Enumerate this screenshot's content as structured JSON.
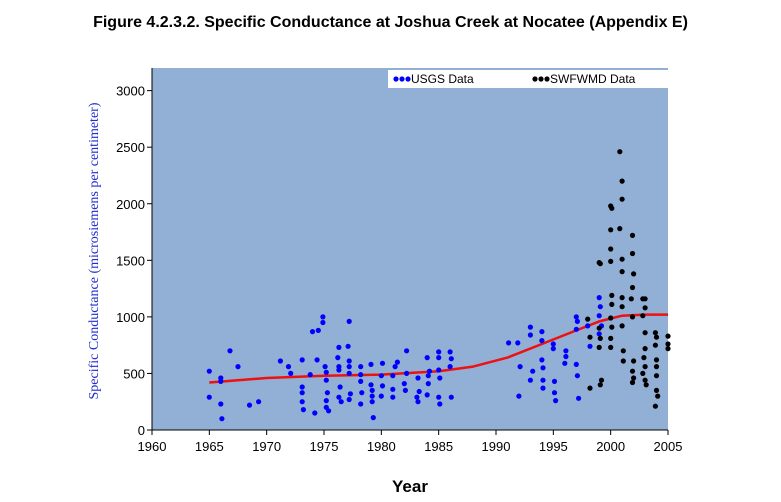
{
  "chart_data": {
    "type": "scatter",
    "title": "Figure 4.2.3.2.  Specific Conductance at Joshua Creek at Nocatee (Appendix E)",
    "xlabel": "Year",
    "ylabel": "Specific Conductance (microsiemens per centimeter)",
    "xlim": [
      1960,
      2005
    ],
    "ylim": [
      0,
      3200
    ],
    "xticks": [
      "1960",
      "1965",
      "1970",
      "1975",
      "1980",
      "1985",
      "1990",
      "1995",
      "2000",
      "2005"
    ],
    "yticks": [
      "0",
      "500",
      "1000",
      "1500",
      "2000",
      "2500",
      "3000"
    ],
    "plot_background": "#92afd6",
    "legend_position": "top-right",
    "grid": false,
    "series": [
      {
        "name": "USGS Data",
        "color": "#0000ff",
        "points": [
          [
            1965.0,
            520
          ],
          [
            1965.0,
            290
          ],
          [
            1966.0,
            460
          ],
          [
            1966.0,
            430
          ],
          [
            1966.0,
            230
          ],
          [
            1966.1,
            100
          ],
          [
            1966.8,
            700
          ],
          [
            1967.5,
            560
          ],
          [
            1968.5,
            220
          ],
          [
            1969.3,
            250
          ],
          [
            1971.2,
            610
          ],
          [
            1971.9,
            560
          ],
          [
            1972.1,
            500
          ],
          [
            1973.1,
            620
          ],
          [
            1973.1,
            380
          ],
          [
            1973.1,
            330
          ],
          [
            1973.1,
            250
          ],
          [
            1973.2,
            180
          ],
          [
            1973.8,
            490
          ],
          [
            1974.0,
            870
          ],
          [
            1974.2,
            150
          ],
          [
            1974.4,
            620
          ],
          [
            1974.5,
            880
          ],
          [
            1974.9,
            1000
          ],
          [
            1974.9,
            950
          ],
          [
            1975.1,
            560
          ],
          [
            1975.2,
            510
          ],
          [
            1975.2,
            440
          ],
          [
            1975.3,
            330
          ],
          [
            1975.2,
            260
          ],
          [
            1975.2,
            200
          ],
          [
            1975.4,
            170
          ],
          [
            1976.3,
            730
          ],
          [
            1976.2,
            640
          ],
          [
            1976.3,
            560
          ],
          [
            1976.3,
            530
          ],
          [
            1976.4,
            380
          ],
          [
            1976.3,
            290
          ],
          [
            1976.5,
            250
          ],
          [
            1977.2,
            960
          ],
          [
            1977.1,
            740
          ],
          [
            1977.2,
            610
          ],
          [
            1977.2,
            560
          ],
          [
            1977.2,
            500
          ],
          [
            1977.3,
            320
          ],
          [
            1977.2,
            270
          ],
          [
            1978.2,
            560
          ],
          [
            1978.2,
            490
          ],
          [
            1978.2,
            430
          ],
          [
            1978.3,
            330
          ],
          [
            1978.2,
            230
          ],
          [
            1979.1,
            580
          ],
          [
            1979.1,
            400
          ],
          [
            1979.2,
            350
          ],
          [
            1979.2,
            300
          ],
          [
            1979.2,
            250
          ],
          [
            1979.3,
            110
          ],
          [
            1980.0,
            480
          ],
          [
            1980.1,
            390
          ],
          [
            1980.0,
            300
          ],
          [
            1980.1,
            590
          ],
          [
            1981.0,
            480
          ],
          [
            1981.0,
            360
          ],
          [
            1981.0,
            290
          ],
          [
            1981.2,
            560
          ],
          [
            1981.4,
            600
          ],
          [
            1982.0,
            410
          ],
          [
            1982.1,
            350
          ],
          [
            1982.2,
            700
          ],
          [
            1982.2,
            500
          ],
          [
            1983.2,
            460
          ],
          [
            1983.3,
            340
          ],
          [
            1983.1,
            290
          ],
          [
            1983.2,
            250
          ],
          [
            1984.1,
            480
          ],
          [
            1984.1,
            410
          ],
          [
            1984.0,
            310
          ],
          [
            1984.2,
            520
          ],
          [
            1984.0,
            640
          ],
          [
            1985.0,
            690
          ],
          [
            1985.0,
            640
          ],
          [
            1985.0,
            530
          ],
          [
            1985.1,
            460
          ],
          [
            1985.0,
            290
          ],
          [
            1985.1,
            230
          ],
          [
            1986.0,
            690
          ],
          [
            1986.1,
            630
          ],
          [
            1986.0,
            560
          ],
          [
            1986.1,
            290
          ],
          [
            1991.1,
            770
          ],
          [
            1991.9,
            770
          ],
          [
            1992.1,
            560
          ],
          [
            1992.0,
            300
          ],
          [
            1993.0,
            840
          ],
          [
            1993.0,
            910
          ],
          [
            1993.2,
            520
          ],
          [
            1993.0,
            440
          ],
          [
            1994.0,
            870
          ],
          [
            1994.0,
            790
          ],
          [
            1994.0,
            620
          ],
          [
            1994.1,
            550
          ],
          [
            1994.1,
            440
          ],
          [
            1994.1,
            370
          ],
          [
            1995.0,
            760
          ],
          [
            1995.0,
            720
          ],
          [
            1995.1,
            430
          ],
          [
            1995.1,
            330
          ],
          [
            1995.2,
            260
          ],
          [
            1996.1,
            700
          ],
          [
            1996.1,
            650
          ],
          [
            1996.0,
            590
          ],
          [
            1997.0,
            1000
          ],
          [
            1997.1,
            960
          ],
          [
            1997.0,
            890
          ],
          [
            1997.0,
            580
          ],
          [
            1997.1,
            480
          ],
          [
            1997.2,
            280
          ],
          [
            1998.0,
            920
          ],
          [
            1998.2,
            740
          ],
          [
            1999.0,
            1170
          ],
          [
            1999.1,
            1090
          ],
          [
            1999.0,
            1010
          ],
          [
            1999.2,
            920
          ],
          [
            1999.0,
            850
          ]
        ]
      },
      {
        "name": "SWFWMD Data",
        "color": "#000000",
        "points": [
          [
            1998.0,
            980
          ],
          [
            1998.2,
            820
          ],
          [
            1998.2,
            370
          ],
          [
            1999.0,
            1480
          ],
          [
            1999.1,
            1470
          ],
          [
            1999.0,
            900
          ],
          [
            1999.1,
            810
          ],
          [
            1999.0,
            730
          ],
          [
            1999.2,
            440
          ],
          [
            1999.1,
            400
          ],
          [
            2000.0,
            1980
          ],
          [
            2000.1,
            1960
          ],
          [
            2000.0,
            1770
          ],
          [
            2000.0,
            1600
          ],
          [
            2000.0,
            1490
          ],
          [
            2000.1,
            1190
          ],
          [
            2000.1,
            1110
          ],
          [
            2000.0,
            990
          ],
          [
            2000.1,
            910
          ],
          [
            2000.0,
            810
          ],
          [
            2000.0,
            730
          ],
          [
            2000.8,
            2460
          ],
          [
            2001.0,
            2200
          ],
          [
            2001.0,
            2040
          ],
          [
            2000.8,
            1780
          ],
          [
            2001.0,
            1510
          ],
          [
            2001.0,
            1400
          ],
          [
            2001.0,
            1170
          ],
          [
            2001.0,
            1090
          ],
          [
            2001.0,
            920
          ],
          [
            2001.1,
            700
          ],
          [
            2001.1,
            610
          ],
          [
            2001.9,
            1720
          ],
          [
            2001.9,
            1560
          ],
          [
            2002.0,
            1380
          ],
          [
            2001.9,
            1260
          ],
          [
            2001.8,
            1160
          ],
          [
            2001.9,
            1000
          ],
          [
            2002.0,
            610
          ],
          [
            2001.9,
            520
          ],
          [
            2002.0,
            460
          ],
          [
            2001.9,
            420
          ],
          [
            2002.8,
            1160
          ],
          [
            2002.8,
            1010
          ],
          [
            2003.0,
            1160
          ],
          [
            2003.0,
            1080
          ],
          [
            2003.0,
            860
          ],
          [
            2003.0,
            720
          ],
          [
            2002.9,
            640
          ],
          [
            2003.0,
            560
          ],
          [
            2002.8,
            500
          ],
          [
            2003.0,
            440
          ],
          [
            2003.1,
            400
          ],
          [
            2003.9,
            860
          ],
          [
            2003.9,
            750
          ],
          [
            2004.0,
            820
          ],
          [
            2004.0,
            620
          ],
          [
            2004.0,
            560
          ],
          [
            2004.0,
            480
          ],
          [
            2004.0,
            350
          ],
          [
            2004.1,
            300
          ],
          [
            2003.9,
            210
          ],
          [
            2005.0,
            830
          ],
          [
            2005.0,
            760
          ],
          [
            2005.0,
            720
          ]
        ]
      }
    ],
    "trend_line": {
      "color": "#ee1111",
      "points": [
        [
          1965,
          420
        ],
        [
          1970,
          460
        ],
        [
          1975,
          480
        ],
        [
          1980,
          490
        ],
        [
          1985,
          520
        ],
        [
          1988,
          560
        ],
        [
          1991,
          640
        ],
        [
          1994,
          760
        ],
        [
          1997,
          880
        ],
        [
          1999,
          960
        ],
        [
          2001,
          1010
        ],
        [
          2003,
          1020
        ],
        [
          2005,
          1020
        ]
      ]
    }
  }
}
